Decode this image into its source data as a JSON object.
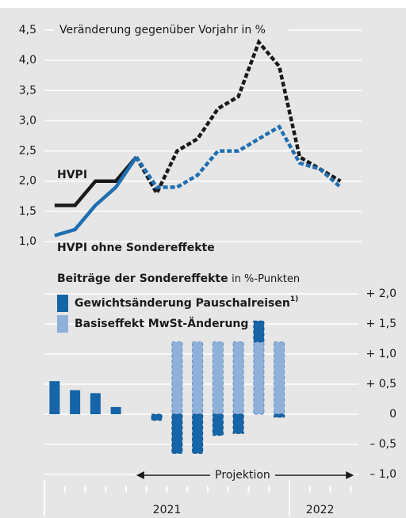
{
  "chart_data": [
    {
      "type": "line",
      "annotation": "Veränderung gegenüber Vorjahr in %",
      "categories": [
        null,
        null,
        null,
        null,
        null,
        null,
        null,
        null,
        null,
        null,
        null,
        null,
        null,
        null,
        null
      ],
      "years": [
        "2021",
        "2022"
      ],
      "projection_label": "Projektion",
      "series": [
        {
          "name": "HVPI",
          "color": "#1a1a1a",
          "values": [
            1.6,
            1.6,
            2.0,
            2.0,
            2.4,
            1.8,
            2.5,
            2.7,
            3.2,
            3.4,
            4.3,
            3.9,
            2.4,
            2.2,
            2.0
          ]
        },
        {
          "name": "HVPI ohne Sondereffekte",
          "color": "#1f6fb2",
          "values": [
            1.1,
            1.2,
            1.6,
            1.9,
            2.4,
            1.9,
            1.9,
            2.1,
            2.5,
            2.5,
            2.7,
            2.9,
            2.3,
            2.2,
            1.9
          ]
        }
      ],
      "ylim": [
        1.0,
        4.5
      ],
      "yticks": [
        {
          "value": 1.0,
          "label": "1,0"
        },
        {
          "value": 1.5,
          "label": "1,5"
        },
        {
          "value": 2.0,
          "label": "2,0"
        },
        {
          "value": 2.5,
          "label": "2,5"
        },
        {
          "value": 3.0,
          "label": "3,0"
        },
        {
          "value": 3.5,
          "label": "3,5"
        },
        {
          "value": 4.0,
          "label": "4,0"
        },
        {
          "value": 4.5,
          "label": "4,5"
        }
      ],
      "grid": true
    },
    {
      "type": "bar",
      "title": "Beiträge der Sondereffekte",
      "title_unit": "in %-Punkten",
      "stacked": true,
      "series": [
        {
          "name": "Basiseffekt MwSt-Änderung",
          "color": "#8fb1d9",
          "values": [
            null,
            null,
            null,
            null,
            null,
            null,
            1.2,
            1.2,
            1.2,
            1.2,
            1.2,
            1.2,
            null,
            null,
            null
          ]
        },
        {
          "name": "Gewichtsänderung Pauschalreisen",
          "footnote": "1)",
          "color": "#1565a8",
          "values": [
            0.55,
            0.4,
            0.35,
            0.12,
            null,
            -0.1,
            -0.65,
            -0.65,
            -0.35,
            -0.32,
            0.35,
            -0.05,
            null,
            null,
            null
          ]
        }
      ],
      "ylim": [
        -1.0,
        2.0
      ],
      "yticks": [
        {
          "value": -1.0,
          "label": "– 1,0"
        },
        {
          "value": -0.5,
          "label": "– 0,5"
        },
        0,
        {
          "value": 0.5,
          "label": "+ 0,5"
        },
        {
          "value": 1.0,
          "label": "+ 1,0"
        },
        {
          "value": 1.5,
          "label": "+ 1,5"
        },
        {
          "value": 2.0,
          "label": "+ 2,0"
        }
      ],
      "grid": true
    }
  ]
}
